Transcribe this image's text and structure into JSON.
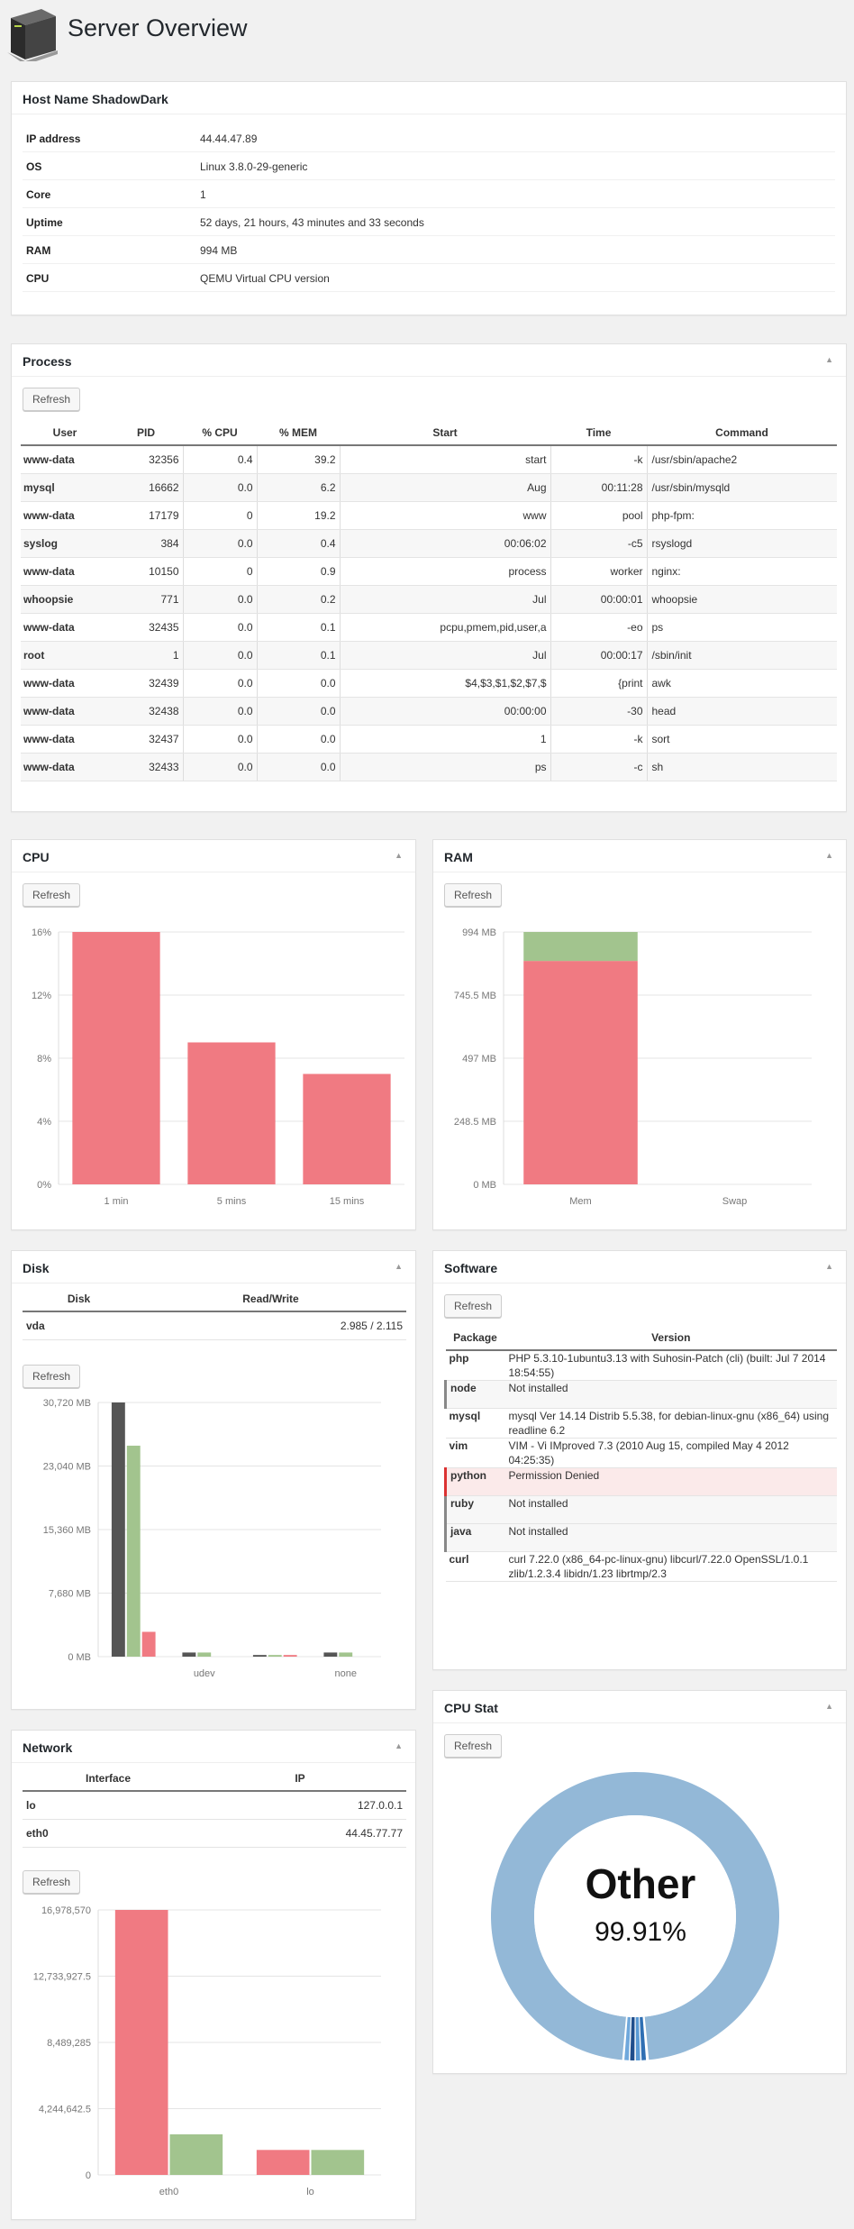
{
  "page": {
    "title": "Server Overview"
  },
  "colors": {
    "red": "#f07a82",
    "green": "#a2c48e",
    "dark": "#555555",
    "blue": "#93b8d7"
  },
  "host": {
    "title": "Host Name ShadowDark",
    "rows": [
      {
        "key": "IP address",
        "value": "44.44.47.89"
      },
      {
        "key": "OS",
        "value": "Linux 3.8.0-29-generic"
      },
      {
        "key": "Core",
        "value": "1"
      },
      {
        "key": "Uptime",
        "value": "52 days, 21 hours, 43 minutes and 33 seconds"
      },
      {
        "key": "RAM",
        "value": "994 MB"
      },
      {
        "key": "CPU",
        "value": "QEMU Virtual CPU version"
      }
    ]
  },
  "process": {
    "title": "Process",
    "refresh": "Refresh",
    "headers": [
      "User",
      "PID",
      "% CPU",
      "% MEM",
      "Start",
      "Time",
      "Command"
    ],
    "rows": [
      [
        "www-data",
        "32356",
        "0.4",
        "39.2",
        "start",
        "-k",
        "/usr/sbin/apache2"
      ],
      [
        "mysql",
        "16662",
        "0.0",
        "6.2",
        "Aug",
        "00:11:28",
        "/usr/sbin/mysqld"
      ],
      [
        "www-data",
        "17179",
        "0",
        "19.2",
        "www",
        "pool",
        "php-fpm:"
      ],
      [
        "syslog",
        "384",
        "0.0",
        "0.4",
        "00:06:02",
        "-c5",
        "rsyslogd"
      ],
      [
        "www-data",
        "10150",
        "0",
        "0.9",
        "process",
        "worker",
        "nginx:"
      ],
      [
        "whoopsie",
        "771",
        "0.0",
        "0.2",
        "Jul",
        "00:00:01",
        "whoopsie"
      ],
      [
        "www-data",
        "32435",
        "0.0",
        "0.1",
        "pcpu,pmem,pid,user,a",
        "-eo",
        "ps"
      ],
      [
        "root",
        "1",
        "0.0",
        "0.1",
        "Jul",
        "00:00:17",
        "/sbin/init"
      ],
      [
        "www-data",
        "32439",
        "0.0",
        "0.0",
        "$4,$3,$1,$2,$7,$",
        "{print",
        "awk"
      ],
      [
        "www-data",
        "32438",
        "0.0",
        "0.0",
        "00:00:00",
        "-30",
        "head"
      ],
      [
        "www-data",
        "32437",
        "0.0",
        "0.0",
        "1",
        "-k",
        "sort"
      ],
      [
        "www-data",
        "32433",
        "0.0",
        "0.0",
        "ps",
        "-c",
        "sh"
      ]
    ]
  },
  "cpu": {
    "title": "CPU",
    "refresh": "Refresh"
  },
  "ram": {
    "title": "RAM",
    "refresh": "Refresh"
  },
  "disk": {
    "title": "Disk",
    "refresh": "Refresh",
    "headers": [
      "Disk",
      "Read/Write"
    ],
    "rows": [
      [
        "vda",
        "2.985 / 2.115"
      ]
    ]
  },
  "software": {
    "title": "Software",
    "refresh": "Refresh",
    "headers": [
      "Package",
      "Version"
    ],
    "rows": [
      {
        "pkg": "php",
        "ver": "PHP 5.3.10-1ubuntu3.13 with Suhosin-Patch (cli) (built: Jul 7 2014 18:54:55)",
        "style": ""
      },
      {
        "pkg": "node",
        "ver": "Not installed",
        "style": "gray"
      },
      {
        "pkg": "mysql",
        "ver": "mysql Ver 14.14 Distrib 5.5.38, for debian-linux-gnu (x86_64) using readline 6.2",
        "style": ""
      },
      {
        "pkg": "vim",
        "ver": "VIM - Vi IMproved 7.3 (2010 Aug 15, compiled May 4 2012 04:25:35)",
        "style": ""
      },
      {
        "pkg": "python",
        "ver": "Permission Denied",
        "style": "red"
      },
      {
        "pkg": "ruby",
        "ver": "Not installed",
        "style": "gray"
      },
      {
        "pkg": "java",
        "ver": "Not installed",
        "style": "gray"
      },
      {
        "pkg": "curl",
        "ver": "curl 7.22.0 (x86_64-pc-linux-gnu) libcurl/7.22.0 OpenSSL/1.0.1 zlib/1.2.3.4 libidn/1.23 librtmp/2.3",
        "style": ""
      }
    ]
  },
  "network": {
    "title": "Network",
    "refresh": "Refresh",
    "headers": [
      "Interface",
      "IP"
    ],
    "rows": [
      [
        "lo",
        "127.0.0.1"
      ],
      [
        "eth0",
        "44.45.77.77"
      ]
    ]
  },
  "cpustat": {
    "title": "CPU Stat",
    "refresh": "Refresh",
    "label": "Other",
    "percent": "99.91%"
  },
  "chart_data": [
    {
      "id": "cpu",
      "type": "bar",
      "categories": [
        "1 min",
        "5 mins",
        "15 mins"
      ],
      "series": [
        {
          "values": [
            16,
            9,
            7
          ]
        }
      ],
      "yticks": [
        "0%",
        "4%",
        "8%",
        "12%",
        "16%"
      ],
      "ylim": [
        0,
        16
      ]
    },
    {
      "id": "ram",
      "type": "bar",
      "stacked": true,
      "categories": [
        "Mem",
        "Swap"
      ],
      "series": [
        {
          "values": [
            880,
            0
          ]
        },
        {
          "values": [
            114,
            0
          ]
        }
      ],
      "yticks": [
        "0 MB",
        "248.5 MB",
        "497 MB",
        "745.5 MB",
        "994 MB"
      ],
      "ylim": [
        0,
        994
      ]
    },
    {
      "id": "disk",
      "type": "bar",
      "categories": [
        "vda",
        "udev",
        "",
        "none"
      ],
      "xticks": [
        "",
        "udev",
        "",
        "none"
      ],
      "series": [
        {
          "values": [
            30720,
            500,
            200,
            500
          ]
        },
        {
          "values": [
            25500,
            500,
            200,
            500
          ]
        },
        {
          "values": [
            3000,
            0,
            200,
            0
          ]
        }
      ],
      "yticks": [
        "0 MB",
        "7,680 MB",
        "15,360 MB",
        "23,040 MB",
        "30,720 MB"
      ],
      "ylim": [
        0,
        30720
      ]
    },
    {
      "id": "network",
      "type": "bar",
      "categories": [
        "eth0",
        "lo"
      ],
      "series": [
        {
          "values": [
            16978570,
            1600000
          ]
        },
        {
          "values": [
            2600000,
            1600000
          ]
        }
      ],
      "yticks": [
        "0",
        "4,244,642.5",
        "8,489,285",
        "12,733,927.5",
        "16,978,570"
      ],
      "ylim": [
        0,
        16978570
      ]
    },
    {
      "id": "cpustat",
      "type": "pie",
      "categories": [
        "Other"
      ],
      "values": [
        99.91
      ]
    }
  ]
}
